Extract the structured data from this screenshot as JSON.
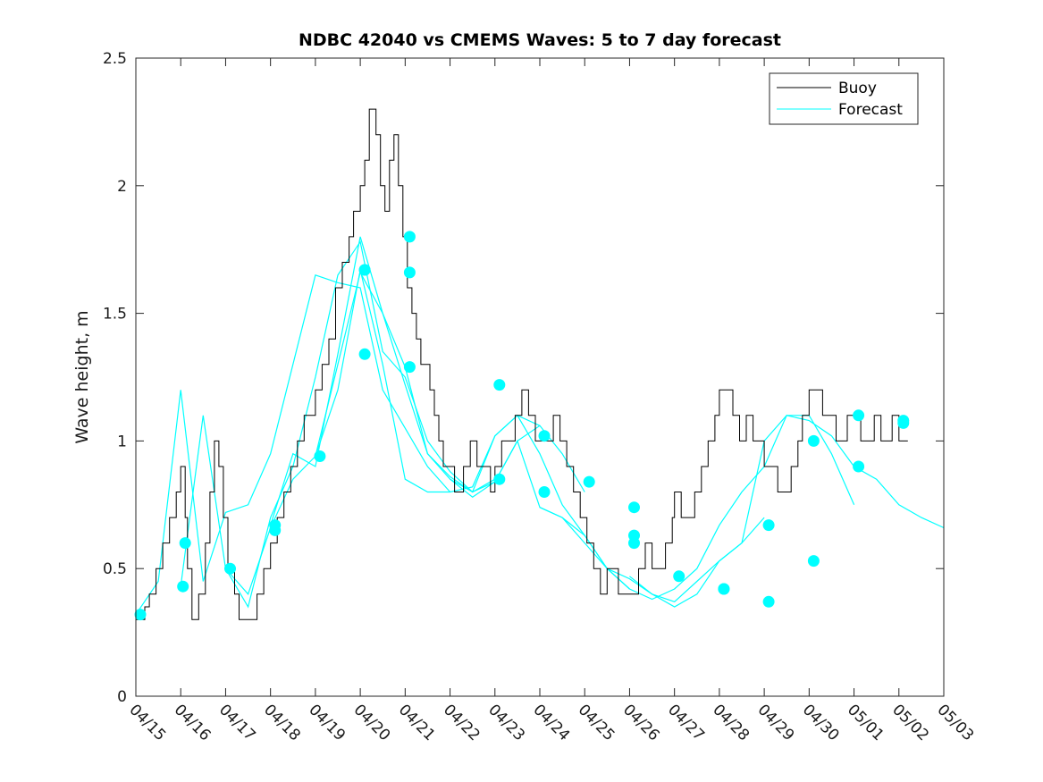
{
  "chart_data": {
    "type": "line",
    "title": "NDBC 42040 vs CMEMS Waves: 5 to 7 day forecast",
    "xlabel": "",
    "ylabel": "Wave height, m",
    "xlim": [
      "04/15",
      "05/03"
    ],
    "ylim": [
      0,
      2.5
    ],
    "yticks": [
      "0",
      "0.5",
      "1",
      "1.5",
      "2",
      "2.5"
    ],
    "xticks": [
      "04/15",
      "04/16",
      "04/17",
      "04/18",
      "04/19",
      "04/20",
      "04/21",
      "04/22",
      "04/23",
      "04/24",
      "04/25",
      "04/26",
      "04/27",
      "04/28",
      "04/29",
      "04/30",
      "05/01",
      "05/02",
      "05/03"
    ],
    "legend": {
      "position": "top-right",
      "entries": [
        "Buoy",
        "Forecast"
      ]
    },
    "colors": {
      "buoy": "#000000",
      "forecast": "#00ffff",
      "axes": "#262626"
    },
    "buoy": {
      "name": "Buoy",
      "x": [
        0,
        0.2,
        0.3,
        0.45,
        0.6,
        0.75,
        0.9,
        1.0,
        1.1,
        1.15,
        1.25,
        1.4,
        1.55,
        1.65,
        1.75,
        1.85,
        1.95,
        2.05,
        2.2,
        2.3,
        2.45,
        2.6,
        2.7,
        2.85,
        3.0,
        3.15,
        3.3,
        3.45,
        3.6,
        3.75,
        3.85,
        4.0,
        4.15,
        4.3,
        4.45,
        4.6,
        4.75,
        4.85,
        5.0,
        5.1,
        5.2,
        5.35,
        5.45,
        5.55,
        5.65,
        5.75,
        5.85,
        5.95,
        6.05,
        6.15,
        6.25,
        6.35,
        6.45,
        6.55,
        6.65,
        6.75,
        6.85,
        7.0,
        7.1,
        7.2,
        7.3,
        7.45,
        7.6,
        7.75,
        7.9,
        8.0,
        8.15,
        8.3,
        8.45,
        8.6,
        8.75,
        8.9,
        9.0,
        9.15,
        9.3,
        9.45,
        9.6,
        9.75,
        9.9,
        10.05,
        10.2,
        10.35,
        10.5,
        10.6,
        10.75,
        10.9,
        11.05,
        11.2,
        11.35,
        11.5,
        11.65,
        11.8,
        11.95,
        12.0,
        12.15,
        12.3,
        12.45,
        12.6,
        12.75,
        12.9,
        13.0,
        13.15,
        13.3,
        13.45,
        13.6,
        13.75,
        13.9,
        14.0,
        14.15,
        14.3,
        14.45,
        14.6,
        14.75,
        14.85,
        15.0,
        15.15,
        15.3,
        15.45,
        15.6,
        15.75,
        15.85,
        16.0,
        16.15,
        16.3,
        16.45,
        16.6,
        16.75,
        16.85,
        17.0,
        17.1,
        17.2
      ],
      "y": [
        0.3,
        0.35,
        0.4,
        0.5,
        0.6,
        0.7,
        0.8,
        0.9,
        0.7,
        0.5,
        0.3,
        0.4,
        0.6,
        0.8,
        1.0,
        0.9,
        0.7,
        0.5,
        0.4,
        0.3,
        0.3,
        0.3,
        0.4,
        0.5,
        0.6,
        0.7,
        0.8,
        0.9,
        1.0,
        1.1,
        1.1,
        1.2,
        1.3,
        1.4,
        1.6,
        1.7,
        1.8,
        1.9,
        2.0,
        2.1,
        2.3,
        2.2,
        2.0,
        1.9,
        2.1,
        2.2,
        2.0,
        1.8,
        1.6,
        1.5,
        1.4,
        1.3,
        1.3,
        1.2,
        1.1,
        1.0,
        0.9,
        0.9,
        0.8,
        0.8,
        0.9,
        1.0,
        0.9,
        0.9,
        0.8,
        0.9,
        1.0,
        1.0,
        1.1,
        1.2,
        1.1,
        1.0,
        1.0,
        1.0,
        1.1,
        1.0,
        0.9,
        0.8,
        0.7,
        0.6,
        0.5,
        0.4,
        0.5,
        0.5,
        0.4,
        0.4,
        0.4,
        0.5,
        0.6,
        0.5,
        0.5,
        0.6,
        0.7,
        0.8,
        0.7,
        0.7,
        0.8,
        0.9,
        1.0,
        1.1,
        1.2,
        1.2,
        1.1,
        1.0,
        1.1,
        1.0,
        1.0,
        0.9,
        0.9,
        0.8,
        0.8,
        0.9,
        1.0,
        1.1,
        1.2,
        1.2,
        1.1,
        1.1,
        1.0,
        1.0,
        1.1,
        1.1,
        1.0,
        1.0,
        1.1,
        1.0,
        1.0,
        1.1,
        1.0,
        1.0,
        1.0
      ]
    },
    "forecast_series": [
      {
        "x": [
          0,
          0.5,
          1.0,
          1.5,
          2.0,
          2.5,
          3.0,
          3.5,
          4.0,
          4.5,
          5.0,
          5.5,
          6.0,
          6.5,
          7.0
        ],
        "y": [
          0.32,
          0.45,
          1.2,
          0.45,
          0.72,
          0.75,
          0.95,
          1.3,
          1.65,
          1.62,
          1.6,
          1.2,
          1.05,
          0.9,
          0.8
        ]
      },
      {
        "x": [
          1.0,
          1.5,
          2.0,
          2.5,
          3.0,
          3.5,
          4.0,
          4.5,
          5.0,
          5.5,
          6.0,
          6.5,
          7.0,
          7.5,
          8.0
        ],
        "y": [
          0.43,
          1.1,
          0.5,
          0.35,
          0.7,
          0.9,
          1.25,
          1.65,
          1.78,
          1.35,
          1.25,
          1.0,
          0.88,
          0.8,
          0.85
        ]
      },
      {
        "x": [
          2.0,
          2.5,
          3.0,
          3.5,
          4.0,
          4.5,
          5.0,
          5.5,
          6.0,
          6.5,
          7.0,
          7.5,
          8.0,
          8.5,
          9.0
        ],
        "y": [
          0.5,
          0.4,
          0.66,
          0.85,
          0.94,
          1.3,
          1.66,
          1.5,
          1.29,
          0.95,
          0.86,
          0.8,
          1.02,
          1.1,
          1.06
        ]
      },
      {
        "x": [
          3.0,
          3.5,
          4.0,
          4.5,
          5.0,
          5.5,
          6.0,
          6.5,
          7.0,
          7.5,
          8.0,
          8.5,
          9.0,
          9.5,
          10.0
        ],
        "y": [
          0.67,
          0.95,
          0.9,
          1.34,
          1.8,
          1.5,
          1.22,
          0.95,
          0.85,
          0.8,
          0.84,
          1.0,
          1.06,
          0.95,
          0.8
        ]
      },
      {
        "x": [
          4.0,
          4.5,
          5.0,
          5.5,
          6.0,
          6.5,
          7.0,
          7.5,
          8.0,
          8.5,
          9.0,
          9.5,
          10.0,
          10.5,
          11.0
        ],
        "y": [
          0.94,
          1.2,
          1.67,
          1.3,
          0.85,
          0.8,
          0.8,
          0.82,
          1.02,
          1.1,
          0.95,
          0.75,
          0.63,
          0.5,
          0.42
        ]
      },
      {
        "x": [
          7.0,
          7.5,
          8.0,
          8.5,
          9.0,
          9.5,
          10.0,
          10.5,
          11.0,
          11.5,
          12.0,
          12.5,
          13.0,
          13.5,
          14.0
        ],
        "y": [
          0.85,
          0.78,
          0.84,
          1.0,
          0.74,
          0.7,
          0.6,
          0.5,
          0.46,
          0.4,
          0.37,
          0.45,
          0.53,
          0.6,
          0.7
        ]
      },
      {
        "x": [
          9.0,
          9.5,
          10.0,
          10.5,
          11.0,
          11.5,
          12.0,
          12.5,
          13.0,
          13.5,
          14.0,
          14.5,
          15.0,
          15.5,
          16.0
        ],
        "y": [
          0.74,
          0.7,
          0.63,
          0.5,
          0.42,
          0.38,
          0.42,
          0.5,
          0.67,
          0.8,
          0.9,
          1.1,
          1.1,
          0.95,
          0.75
        ]
      },
      {
        "x": [
          11.0,
          11.5,
          12.0,
          12.5,
          13.0,
          13.5,
          14.0,
          14.5,
          15.0,
          15.5,
          16.0,
          16.5,
          17.0,
          17.5,
          18.0
        ],
        "y": [
          0.47,
          0.4,
          0.35,
          0.4,
          0.53,
          0.6,
          1.0,
          1.1,
          1.08,
          1.02,
          0.9,
          0.85,
          0.75,
          0.7,
          0.66
        ]
      }
    ],
    "forecast_markers": {
      "x": [
        0.1,
        1.05,
        1.1,
        2.1,
        3.1,
        3.1,
        4.1,
        5.1,
        5.1,
        5.1,
        6.1,
        6.1,
        6.1,
        8.1,
        8.1,
        9.1,
        9.1,
        10.1,
        11.1,
        11.1,
        11.1,
        12.1,
        13.1,
        13.1,
        14.1,
        14.1,
        15.1,
        15.1,
        16.1,
        16.1,
        17.1,
        17.1
      ],
      "y": [
        0.32,
        0.43,
        0.6,
        0.5,
        0.65,
        0.67,
        0.94,
        1.34,
        1.67,
        1.67,
        1.8,
        1.66,
        1.29,
        1.22,
        0.85,
        0.8,
        1.02,
        0.84,
        0.74,
        0.63,
        0.6,
        0.47,
        0.42,
        0.42,
        0.37,
        0.67,
        0.53,
        1.0,
        0.9,
        1.1,
        1.08,
        1.07
      ]
    }
  }
}
